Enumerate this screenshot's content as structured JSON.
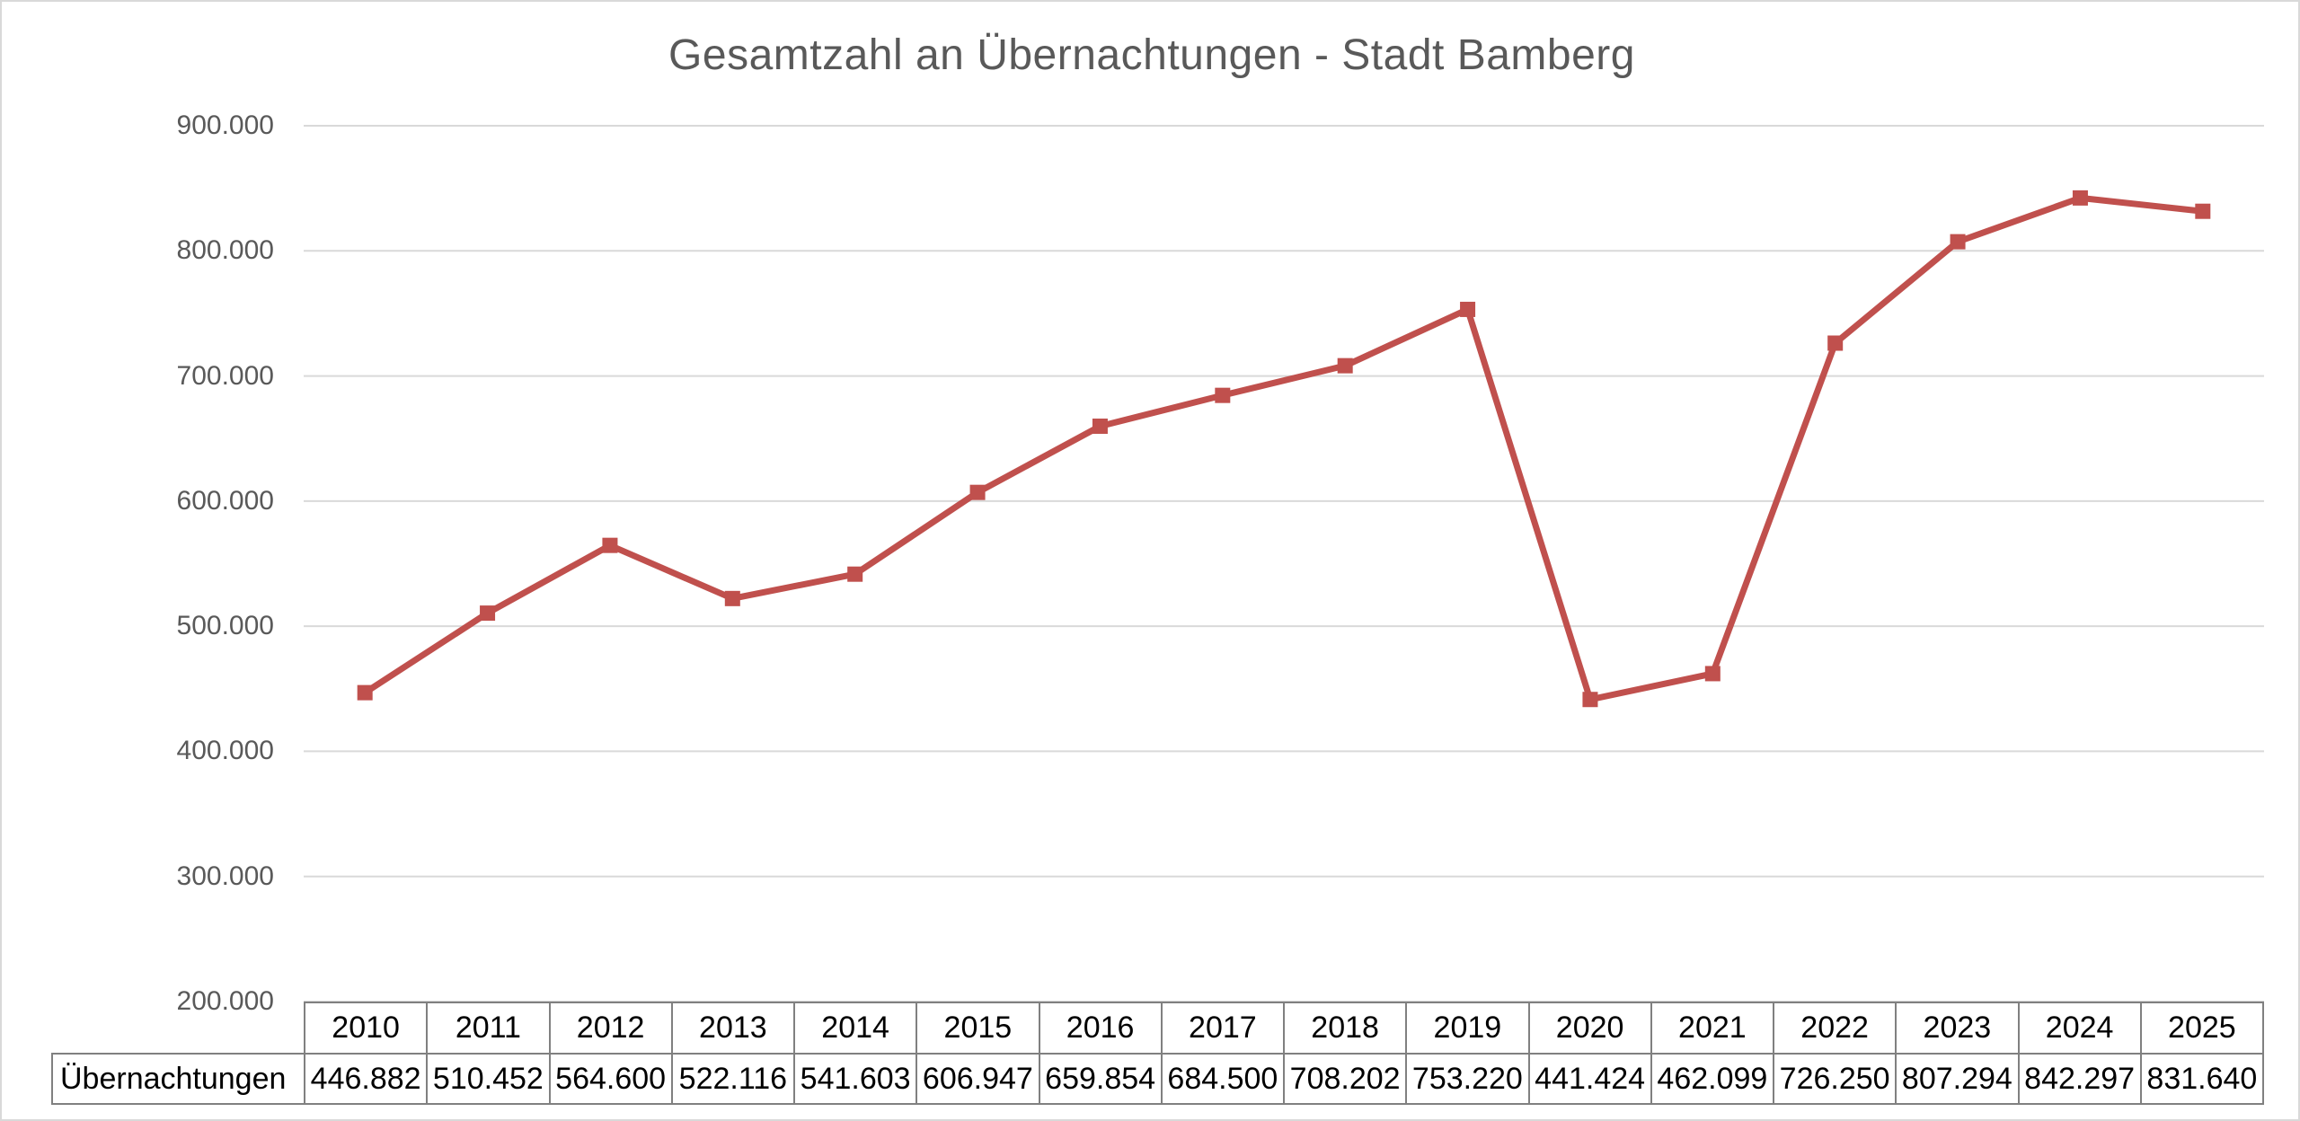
{
  "chart_data": {
    "type": "line",
    "title": "Gesamtzahl an Übernachtungen - Stadt Bamberg",
    "series_name": "Übernachtungen",
    "categories": [
      "2010",
      "2011",
      "2012",
      "2013",
      "2014",
      "2015",
      "2016",
      "2017",
      "2018",
      "2019",
      "2020",
      "2021",
      "2022",
      "2023",
      "2024",
      "2025"
    ],
    "values": [
      446882,
      510452,
      564600,
      522116,
      541603,
      606947,
      659854,
      684500,
      708202,
      753220,
      441424,
      462099,
      726250,
      807294,
      842297,
      831640
    ],
    "value_labels": [
      "446.882",
      "510.452",
      "564.600",
      "522.116",
      "541.603",
      "606.947",
      "659.854",
      "684.500",
      "708.202",
      "753.220",
      "441.424",
      "462.099",
      "726.250",
      "807.294",
      "842.297",
      "831.640"
    ],
    "xlabel": "",
    "ylabel": "",
    "ylim": [
      200000,
      900000
    ],
    "y_ticks": [
      900000,
      800000,
      700000,
      600000,
      500000,
      400000,
      300000,
      200000
    ],
    "y_tick_labels": [
      "900.000",
      "800.000",
      "700.000",
      "600.000",
      "500.000",
      "400.000",
      "300.000",
      "200.000"
    ],
    "grid": true,
    "legend_position": "none",
    "marker": "square",
    "data_table_below_chart": true
  },
  "colors": {
    "series_line": "#C0504D",
    "gridline": "#D9D9D9",
    "chart_border": "#D9D9D9",
    "title_text": "#595959",
    "axis_text": "#595959",
    "table_border": "#808080",
    "table_text": "#000000",
    "background": "#FFFFFF"
  }
}
